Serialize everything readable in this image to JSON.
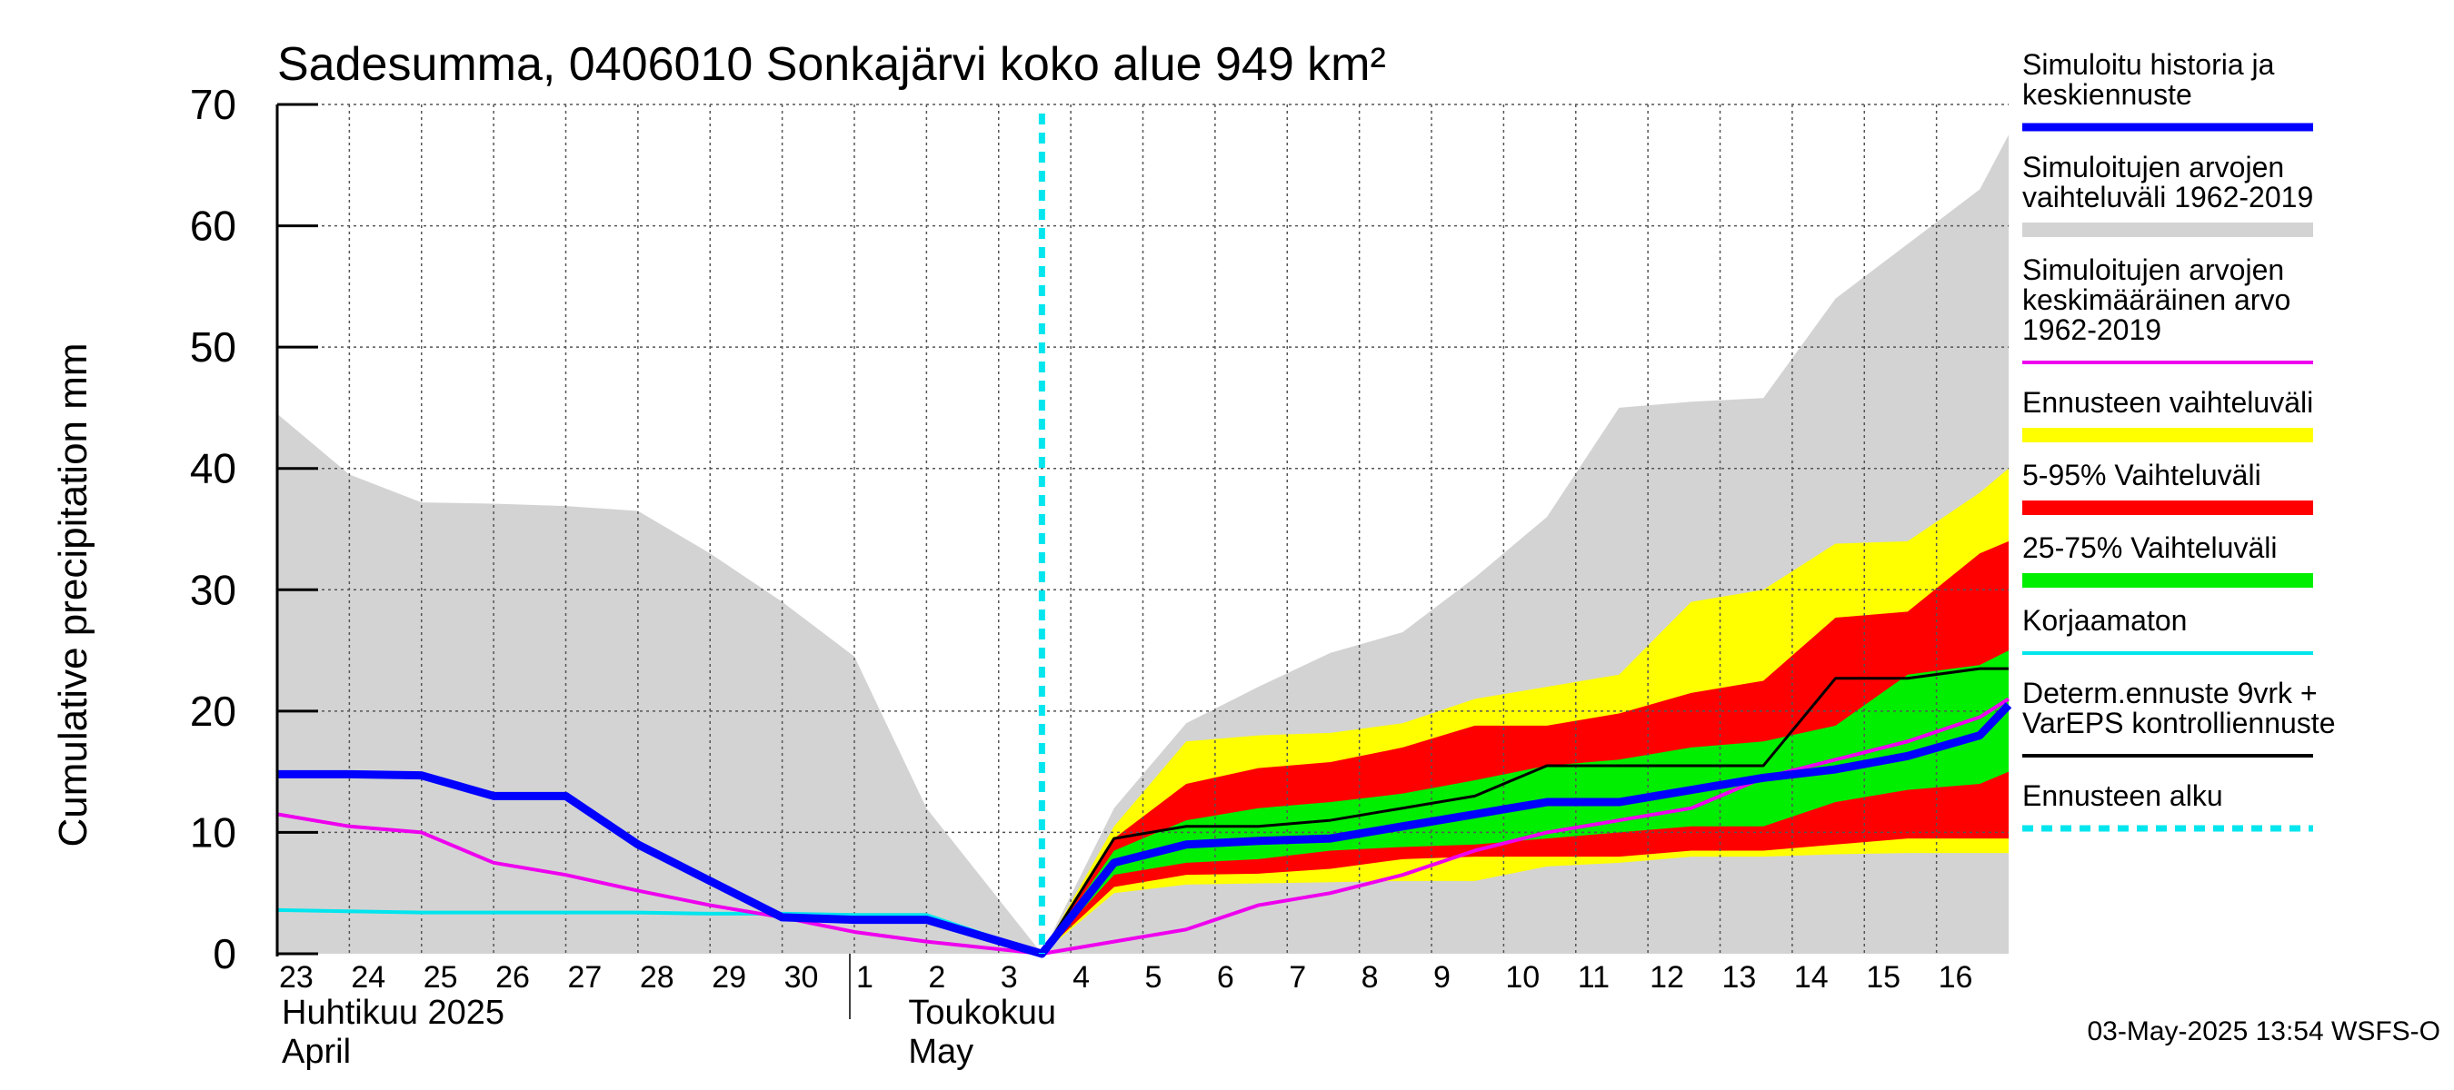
{
  "chart_data": {
    "type": "area",
    "title": "Sadesumma, 0406010 Sonkajärvi koko alue 949 km²",
    "ylabel": "Cumulative precipitation   mm",
    "xlabel": "",
    "ylim": [
      0,
      70
    ],
    "yticks": [
      0,
      10,
      20,
      30,
      40,
      50,
      60,
      70
    ],
    "grid": true,
    "legend_position": "right",
    "x_tick_labels": [
      "23",
      "24",
      "25",
      "26",
      "27",
      "28",
      "29",
      "30",
      "1",
      "2",
      "3",
      "4",
      "5",
      "6",
      "7",
      "8",
      "9",
      "10",
      "11",
      "12",
      "13",
      "14",
      "15",
      "16"
    ],
    "month_labels": [
      {
        "fi": "Huhtikuu  2025",
        "en": "April"
      },
      {
        "fi": "Toukokuu",
        "en": "May"
      }
    ],
    "forecast_start_day": 10.6,
    "timestamp": "03-May-2025 13:54 WSFS-O",
    "bands": {
      "hist_range": {
        "x": [
          0,
          1,
          2,
          3,
          4,
          5,
          6,
          7,
          8,
          9,
          10.6,
          11.6,
          12.6,
          13.6,
          14.6,
          15.6,
          16.6,
          17.6,
          18.6,
          19.6,
          20.6,
          21.6,
          22.6,
          23.6,
          24
        ],
        "upper": [
          44.5,
          39.5,
          37.2,
          37.1,
          36.9,
          36.5,
          33.0,
          29.0,
          24.5,
          12.0,
          0,
          12.0,
          19.0,
          22.0,
          24.8,
          26.5,
          31.0,
          36.0,
          45.0,
          45.5,
          45.8,
          54.0,
          58.5,
          63.0,
          67.5
        ],
        "lower": [
          0,
          0,
          0,
          0,
          0,
          0,
          0,
          0,
          0,
          0,
          0,
          0,
          0,
          0,
          0,
          0,
          0,
          0,
          0,
          0,
          0,
          0,
          0,
          0,
          0
        ]
      },
      "ensemble_range": {
        "x": [
          10.6,
          11.6,
          12.6,
          13.6,
          14.6,
          15.6,
          16.6,
          17.6,
          18.6,
          19.6,
          20.6,
          21.6,
          22.6,
          23.6,
          24
        ],
        "upper": [
          0,
          10.5,
          17.5,
          18.0,
          18.2,
          19.0,
          21.0,
          22.0,
          23.0,
          29.0,
          30.0,
          33.8,
          34.0,
          38.0,
          40.0
        ],
        "lower": [
          0,
          5.0,
          5.7,
          5.8,
          5.9,
          6.0,
          6.0,
          7.2,
          7.5,
          8.0,
          8.0,
          8.2,
          8.3,
          8.3,
          8.3
        ]
      },
      "p5_95": {
        "x": [
          10.6,
          11.6,
          12.6,
          13.6,
          14.6,
          15.6,
          16.6,
          17.6,
          18.6,
          19.6,
          20.6,
          21.6,
          22.6,
          23.6,
          24
        ],
        "upper": [
          0,
          9.5,
          14.0,
          15.3,
          15.8,
          17.0,
          18.8,
          18.8,
          19.8,
          21.5,
          22.5,
          27.7,
          28.2,
          33.0,
          34.0
        ],
        "lower": [
          0,
          5.5,
          6.5,
          6.6,
          7.0,
          7.8,
          8.0,
          8.0,
          8.0,
          8.5,
          8.5,
          9.0,
          9.5,
          9.5,
          9.5
        ]
      },
      "p25_75": {
        "x": [
          10.6,
          11.6,
          12.6,
          13.6,
          14.6,
          15.6,
          16.6,
          17.6,
          18.6,
          19.6,
          20.6,
          21.6,
          22.6,
          23.6,
          24
        ],
        "upper": [
          0,
          8.5,
          11.0,
          12.0,
          12.5,
          13.2,
          14.3,
          15.5,
          16.0,
          17.0,
          17.5,
          18.8,
          23.0,
          23.8,
          25.0
        ],
        "lower": [
          0,
          6.5,
          7.5,
          7.8,
          8.5,
          8.8,
          9.0,
          9.5,
          10.0,
          10.5,
          10.5,
          12.5,
          13.5,
          14.0,
          15.0
        ]
      }
    },
    "series": [
      {
        "name": "Simuloitu historia ja keskiennuste",
        "color": "#0000ff",
        "x": [
          0,
          1,
          2,
          3,
          4,
          5,
          6,
          7,
          8,
          9,
          10.6,
          11.6,
          12.6,
          13.6,
          14.6,
          15.6,
          16.6,
          17.6,
          18.6,
          19.6,
          20.6,
          21.6,
          22.6,
          23.6,
          24
        ],
        "values": [
          14.8,
          14.8,
          14.7,
          13.0,
          13.0,
          9.0,
          6.0,
          3.0,
          2.8,
          2.8,
          0,
          7.5,
          9.0,
          9.3,
          9.5,
          10.5,
          11.5,
          12.5,
          12.5,
          13.5,
          14.5,
          15.2,
          16.3,
          18.0,
          20.5
        ]
      },
      {
        "name": "Simuloitujen arvojen keskimääräinen arvo 1962-2019",
        "color": "#ee00ee",
        "x": [
          0,
          1,
          2,
          3,
          4,
          5,
          6,
          7,
          8,
          9,
          10.6,
          11.6,
          12.6,
          13.6,
          14.6,
          15.6,
          16.6,
          17.6,
          18.6,
          19.6,
          20.6,
          21.6,
          22.6,
          23.6,
          24
        ],
        "values": [
          11.5,
          10.5,
          10.0,
          7.5,
          6.5,
          5.2,
          4.0,
          3.0,
          1.8,
          1.0,
          0,
          1.0,
          2.0,
          4.0,
          5.0,
          6.5,
          8.5,
          10.0,
          11.0,
          12.0,
          14.5,
          16.0,
          17.5,
          19.5,
          21.0
        ]
      },
      {
        "name": "Korjaamaton",
        "color": "#00e5ee",
        "x": [
          0,
          1,
          2,
          3,
          4,
          5,
          6,
          7,
          8,
          9,
          10.6
        ],
        "values": [
          3.6,
          3.5,
          3.4,
          3.4,
          3.4,
          3.4,
          3.3,
          3.3,
          3.2,
          3.2,
          0
        ]
      },
      {
        "name": "Determ.ennuste 9vrk + VarEPS kontrolliennuste",
        "color": "#000000",
        "x": [
          10.6,
          11.6,
          12.6,
          13.6,
          14.6,
          15.6,
          16.6,
          17.6,
          18.6,
          19.6,
          20.6,
          21.6,
          22.6,
          23.6,
          24
        ],
        "values": [
          0,
          9.5,
          10.5,
          10.5,
          11.0,
          12.0,
          13.0,
          15.5,
          15.5,
          15.5,
          15.5,
          22.7,
          22.7,
          23.5,
          23.5
        ]
      }
    ]
  },
  "legend": [
    {
      "text": "Simuloitu historia ja\nkeskiennuste",
      "color": "#0000ff",
      "style": "line"
    },
    {
      "text": "Simuloitujen arvojen\nvaihteluväli 1962-2019",
      "color": "#d3d3d3",
      "style": "bar"
    },
    {
      "text": "Simuloitujen arvojen\nkeskimääräinen arvo\n   1962-2019",
      "color": "#ee00ee",
      "style": "thin"
    },
    {
      "text": "Ennusteen vaihteluväli",
      "color": "#ffff00",
      "style": "bar"
    },
    {
      "text": "5-95% Vaihteluväli",
      "color": "#ff0000",
      "style": "bar"
    },
    {
      "text": "25-75% Vaihteluväli",
      "color": "#00ee00",
      "style": "bar"
    },
    {
      "text": "Korjaamaton",
      "color": "#00e5ee",
      "style": "thin"
    },
    {
      "text": "Determ.ennuste 9vrk +\nVarEPS kontrolliennuste",
      "color": "#000000",
      "style": "thin"
    },
    {
      "text": "Ennusteen alku",
      "color": "#00e5ee",
      "style": "dashed"
    }
  ]
}
